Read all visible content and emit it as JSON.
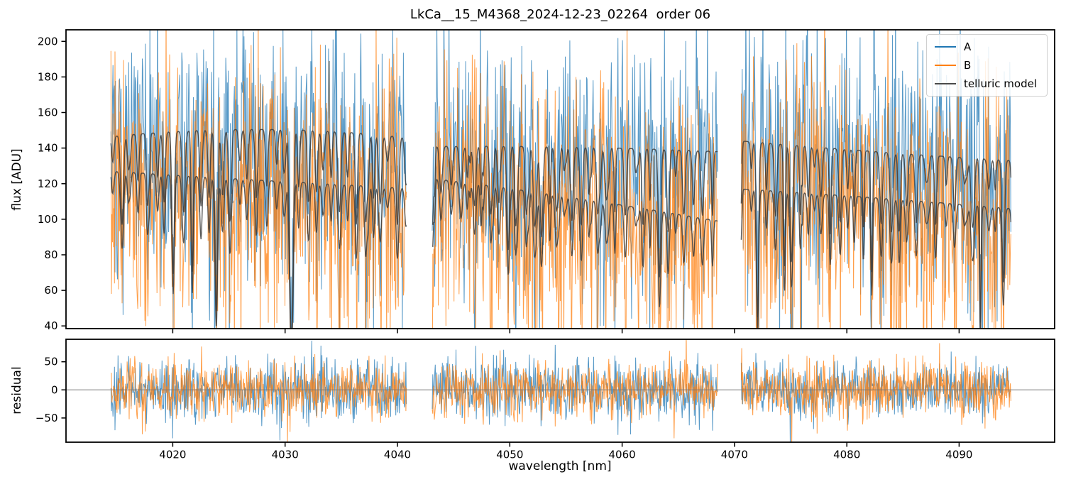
{
  "title": "LkCa__15_M4368_2024-12-23_02264  order 06",
  "legend": {
    "items": [
      {
        "label": "A",
        "color": "#1f77b4"
      },
      {
        "label": "B",
        "color": "#ff7f0e"
      },
      {
        "label": "telluric model",
        "color": "#4a4a4a"
      }
    ]
  },
  "chart_data": {
    "type": "line",
    "title": "LkCa__15_M4368_2024-12-23_02264  order 06",
    "xlabel": "wavelength [nm]",
    "xlim": [
      4010.5,
      4098.5
    ],
    "xticks": [
      4020,
      4030,
      4040,
      4050,
      4060,
      4070,
      4080,
      4090
    ],
    "grid": false,
    "legend_position": "upper right",
    "segments": [
      [
        4014.5,
        4040.8
      ],
      [
        4043.1,
        4068.5
      ],
      [
        4070.6,
        4094.6
      ]
    ],
    "sample_step_nm": 0.045,
    "panels": [
      {
        "name": "flux",
        "ylabel": "flux [ADU]",
        "ylim": [
          38.5,
          206.5
        ],
        "yticks": [
          40,
          60,
          80,
          100,
          120,
          140,
          160,
          180,
          200
        ],
        "zero_line": false
      },
      {
        "name": "residual",
        "ylabel": "residual",
        "ylim": [
          -93,
          90
        ],
        "yticks": [
          -50,
          0,
          50
        ],
        "zero_line": true
      }
    ],
    "series": [
      {
        "name": "A",
        "panel": 0,
        "kind": "data",
        "color": "#1f77b4",
        "opacity": 0.75,
        "sigma": 36,
        "seed": 101
      },
      {
        "name": "B",
        "panel": 0,
        "kind": "data",
        "color": "#ff7f0e",
        "opacity": 0.75,
        "sigma": 36,
        "seed": 202
      },
      {
        "name": "telluric model",
        "panel": 0,
        "kind": "model",
        "color": "#3c3c3c",
        "opacity": 0.85
      },
      {
        "name": "A residual",
        "panel": 1,
        "kind": "residual",
        "color": "#1f77b4",
        "opacity": 0.75,
        "sigma": 26,
        "seed": 303
      },
      {
        "name": "B residual",
        "panel": 1,
        "kind": "residual",
        "color": "#ff7f0e",
        "opacity": 0.75,
        "sigma": 26,
        "seed": 404
      }
    ],
    "continuum_ADU": {
      "A": [
        [
          146.5,
          150.5,
          146
        ],
        [
          141,
          140.5,
          138
        ],
        [
          144,
          138,
          133
        ]
      ],
      "B": [
        [
          127,
          122,
          117.5
        ],
        [
          123,
          112,
          99
        ],
        [
          117,
          112,
          106
        ]
      ]
    },
    "telluric_lines": {
      "seed": 7,
      "spacing_nm": [
        0.55,
        0.95
      ],
      "sigma_nm": [
        0.07,
        0.13
      ],
      "depth": [
        0.08,
        0.35
      ],
      "deep_fraction": 0.15,
      "deep_depth": [
        0.35,
        0.7
      ],
      "double_fraction": 0.25
    },
    "zero_line_color": "#777777",
    "axis_color": "#000000"
  }
}
